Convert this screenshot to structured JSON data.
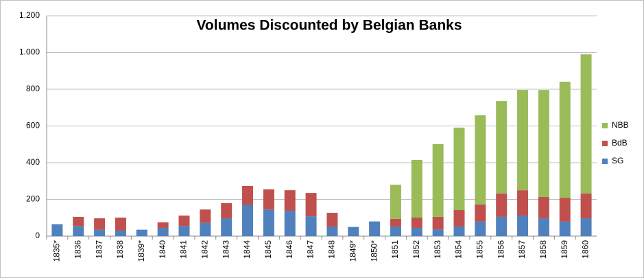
{
  "chart_data": {
    "type": "stacked_bar",
    "title": "Volumes Discounted by Belgian Banks",
    "categories": [
      "1835*",
      "1836",
      "1837",
      "1838",
      "1839*",
      "1840",
      "1841",
      "1842",
      "1843",
      "1844",
      "1845",
      "1846",
      "1847",
      "1848",
      "1849*",
      "1850*",
      "1851",
      "1852",
      "1853",
      "1854",
      "1855",
      "1856",
      "1857",
      "1858",
      "1859",
      "1860"
    ],
    "series": [
      {
        "name": "SG",
        "color": "#4f81bd",
        "values": [
          65,
          55,
          35,
          30,
          35,
          45,
          55,
          72,
          97,
          170,
          145,
          138,
          108,
          52,
          50,
          80,
          52,
          45,
          37,
          52,
          79,
          105,
          112,
          97,
          79,
          97
        ]
      },
      {
        "name": "BdB",
        "color": "#c0504d",
        "values": [
          null,
          50,
          62,
          71,
          null,
          30,
          57,
          73,
          83,
          103,
          110,
          112,
          127,
          75,
          null,
          null,
          42,
          56,
          68,
          90,
          93,
          127,
          138,
          116,
          130,
          135
        ]
      },
      {
        "name": "NBB",
        "color": "#9bbb59",
        "values": [
          null,
          null,
          null,
          null,
          null,
          null,
          null,
          null,
          null,
          null,
          null,
          null,
          null,
          null,
          null,
          null,
          186,
          314,
          396,
          449,
          486,
          504,
          546,
          583,
          632,
          758
        ]
      }
    ],
    "ylim": [
      0,
      1200
    ],
    "yticks": [
      0,
      200,
      400,
      600,
      800,
      {
        "value": 1000,
        "label": "1.000"
      },
      {
        "value": 1200,
        "label": "1.200"
      }
    ],
    "grid": true,
    "legend": "right"
  }
}
